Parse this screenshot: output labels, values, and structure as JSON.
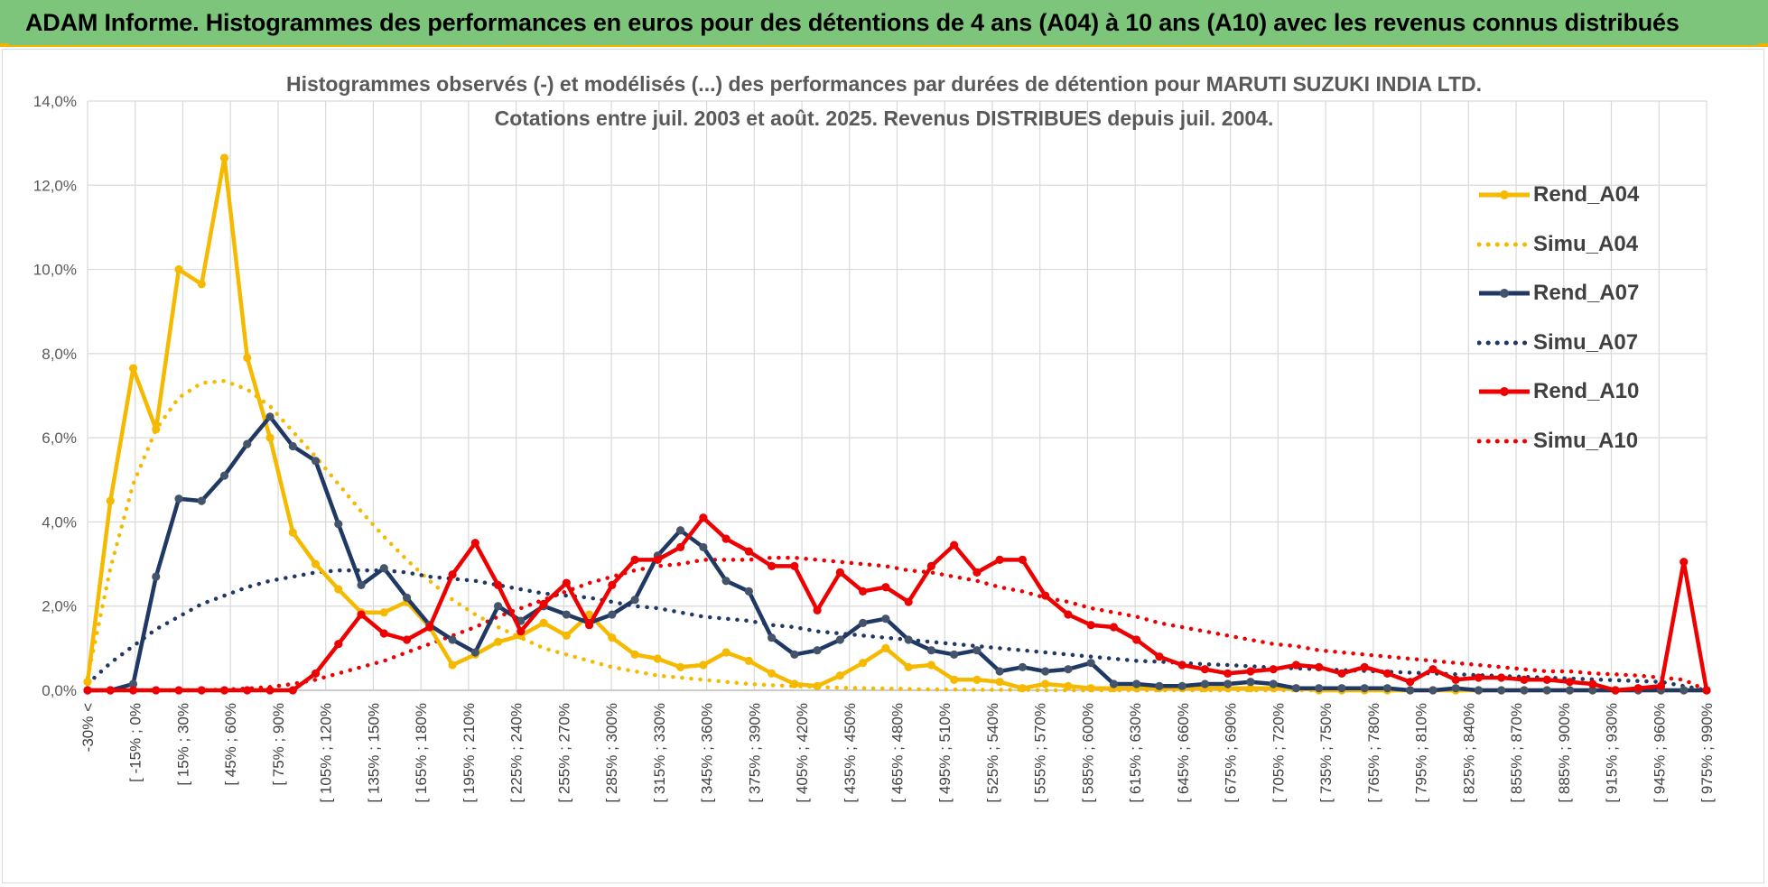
{
  "banner": {
    "title": "ADAM Informe. Histogrammes des performances en euros pour des détentions de 4 ans (A04) à 10 ans (A10) avec les revenus connus distribués"
  },
  "colors": {
    "banner_bg": "#7DC57B",
    "accent": "#F0B400",
    "A04": "#F5BA00",
    "A07": "#1F3864",
    "A10": "#EE0000"
  },
  "chart_data": {
    "type": "line",
    "title": "Histogrammes observés (-) et modélisés (...) des performances par durées de détention pour MARUTI SUZUKI INDIA LTD.",
    "subtitle": "Cotations entre juil. 2003 et août. 2025. Revenus DISTRIBUES depuis juil. 2004.",
    "ylim": [
      0,
      14
    ],
    "y_unit": "%",
    "yticks": [
      "0,0%",
      "2,0%",
      "4,0%",
      "6,0%",
      "8,0%",
      "10,0%",
      "12,0%",
      "14,0%"
    ],
    "grid": true,
    "legend_position": "top-right",
    "x_tick_labels": [
      "-30% <",
      "[ -15% ; 0%",
      "[ 15% ; 30%",
      "[ 45% ; 60%",
      "[ 75% ; 90%",
      "[ 105% ; 120%",
      "[ 135% ; 150%",
      "[ 165% ; 180%",
      "[ 195% ; 210%",
      "[ 225% ; 240%",
      "[ 255% ; 270%",
      "[ 285% ; 300%",
      "[ 315% ; 330%",
      "[ 345% ; 360%",
      "[ 375% ; 390%",
      "[ 405% ; 420%",
      "[ 435% ; 450%",
      "[ 465% ; 480%",
      "[ 495% ; 510%",
      "[ 525% ; 540%",
      "[ 555% ; 570%",
      "[ 585% ; 600%",
      "[ 615% ; 630%",
      "[ 645% ; 660%",
      "[ 675% ; 690%",
      "[ 705% ; 720%",
      "[ 735% ; 750%",
      "[ 765% ; 780%",
      "[ 795% ; 810%",
      "[ 825% ; 840%",
      "[ 855% ; 870%",
      "[ 885% ; 900%",
      "[ 915% ; 930%",
      "[ 945% ; 960%",
      "[ 975% ; 990%"
    ],
    "series": [
      {
        "name": "Rend_A04",
        "style": "solid-markers",
        "color": "#F5BA00",
        "values": [
          0.2,
          4.5,
          7.65,
          6.2,
          10.0,
          9.65,
          12.65,
          7.9,
          6.0,
          3.75,
          3.0,
          2.4,
          1.85,
          1.85,
          2.1,
          1.5,
          0.6,
          0.85,
          1.15,
          1.3,
          1.6,
          1.3,
          1.8,
          1.25,
          0.85,
          0.75,
          0.55,
          0.6,
          0.9,
          0.7,
          0.4,
          0.15,
          0.1,
          0.35,
          0.65,
          1.0,
          0.55,
          0.6,
          0.25,
          0.25,
          0.2,
          0.05,
          0.15,
          0.1,
          0.05,
          0.05,
          0.05,
          0.05,
          0.05,
          0.05,
          0.05,
          0.05,
          0.05,
          0.05,
          0.0,
          0.0,
          0.0,
          0.0,
          0.0,
          0.0,
          0.0,
          0.0,
          0.0,
          0.0,
          0.0,
          0.0,
          0.0,
          0.0,
          0.0,
          0.0,
          0.0,
          0.0
        ]
      },
      {
        "name": "Simu_A04",
        "style": "dotted",
        "color": "#F5BA00",
        "values": [
          0.3,
          2.9,
          4.9,
          6.2,
          6.95,
          7.3,
          7.35,
          7.15,
          6.75,
          6.15,
          5.55,
          4.9,
          4.25,
          3.65,
          3.1,
          2.6,
          2.15,
          1.8,
          1.5,
          1.25,
          1.0,
          0.85,
          0.7,
          0.55,
          0.45,
          0.35,
          0.3,
          0.25,
          0.2,
          0.15,
          0.12,
          0.1,
          0.08,
          0.06,
          0.05,
          0.04,
          0.03,
          0.02,
          0.02,
          0.01,
          0.01,
          0.01,
          0.0,
          0.0,
          0.0,
          0.0,
          0.0,
          0.0,
          0.0,
          0.0,
          0.0,
          0.0,
          0.0,
          0.0,
          0.0,
          0.0,
          0.0,
          0.0,
          0.0,
          0.0,
          0.0,
          0.0,
          0.0,
          0.0,
          0.0,
          0.0,
          0.0,
          0.0,
          0.0,
          0.0,
          0.0,
          0.0
        ]
      },
      {
        "name": "Rend_A07",
        "style": "solid-markers",
        "color": "#1F3864",
        "values": [
          0.0,
          0.0,
          0.15,
          2.7,
          4.55,
          4.5,
          5.1,
          5.85,
          6.5,
          5.8,
          5.45,
          3.95,
          2.5,
          2.9,
          2.2,
          1.55,
          1.2,
          0.9,
          2.0,
          1.65,
          2.0,
          1.8,
          1.6,
          1.8,
          2.15,
          3.2,
          3.8,
          3.4,
          2.6,
          2.35,
          1.25,
          0.85,
          0.95,
          1.2,
          1.6,
          1.7,
          1.2,
          0.95,
          0.85,
          0.95,
          0.45,
          0.55,
          0.45,
          0.5,
          0.65,
          0.15,
          0.15,
          0.1,
          0.1,
          0.15,
          0.15,
          0.2,
          0.15,
          0.05,
          0.05,
          0.05,
          0.05,
          0.05,
          0.0,
          0.0,
          0.05,
          0.0,
          0.0,
          0.0,
          0.0,
          0.0,
          0.0,
          0.0,
          0.0,
          0.0,
          0.0,
          0.0
        ]
      },
      {
        "name": "Simu_A07",
        "style": "dotted",
        "color": "#1F3864",
        "values": [
          0.15,
          0.65,
          1.05,
          1.45,
          1.75,
          2.05,
          2.25,
          2.45,
          2.6,
          2.7,
          2.8,
          2.85,
          2.85,
          2.85,
          2.8,
          2.7,
          2.65,
          2.6,
          2.5,
          2.4,
          2.3,
          2.25,
          2.2,
          2.1,
          2.0,
          1.95,
          1.85,
          1.75,
          1.7,
          1.65,
          1.55,
          1.5,
          1.4,
          1.35,
          1.3,
          1.25,
          1.2,
          1.15,
          1.1,
          1.05,
          1.0,
          0.95,
          0.9,
          0.85,
          0.8,
          0.75,
          0.7,
          0.68,
          0.65,
          0.62,
          0.6,
          0.57,
          0.54,
          0.52,
          0.5,
          0.48,
          0.46,
          0.44,
          0.42,
          0.4,
          0.38,
          0.36,
          0.34,
          0.32,
          0.3,
          0.28,
          0.26,
          0.24,
          0.22,
          0.2,
          0.1,
          0.0
        ]
      },
      {
        "name": "Rend_A10",
        "style": "solid-markers",
        "color": "#EE0000",
        "values": [
          0.0,
          0.0,
          0.0,
          0.0,
          0.0,
          0.0,
          0.0,
          0.0,
          0.0,
          0.0,
          0.4,
          1.1,
          1.8,
          1.35,
          1.2,
          1.5,
          2.75,
          3.5,
          2.5,
          1.4,
          2.05,
          2.55,
          1.55,
          2.5,
          3.1,
          3.1,
          3.4,
          4.1,
          3.6,
          3.3,
          2.95,
          2.95,
          1.9,
          2.8,
          2.35,
          2.45,
          2.1,
          2.95,
          3.45,
          2.8,
          3.1,
          3.1,
          2.25,
          1.8,
          1.55,
          1.5,
          1.2,
          0.8,
          0.6,
          0.5,
          0.4,
          0.45,
          0.5,
          0.6,
          0.55,
          0.4,
          0.55,
          0.4,
          0.2,
          0.5,
          0.25,
          0.3,
          0.3,
          0.25,
          0.25,
          0.2,
          0.15,
          0.0,
          0.05,
          0.1,
          3.05,
          0.0
        ]
      },
      {
        "name": "Simu_A10",
        "style": "dotted",
        "color": "#EE0000",
        "values": [
          0.0,
          0.0,
          0.0,
          0.0,
          0.0,
          0.0,
          0.02,
          0.04,
          0.08,
          0.15,
          0.25,
          0.4,
          0.55,
          0.7,
          0.9,
          1.1,
          1.3,
          1.5,
          1.75,
          1.95,
          2.15,
          2.35,
          2.55,
          2.7,
          2.85,
          2.95,
          3.0,
          3.1,
          3.1,
          3.1,
          3.15,
          3.15,
          3.1,
          3.05,
          3.0,
          2.95,
          2.85,
          2.8,
          2.7,
          2.6,
          2.45,
          2.35,
          2.2,
          2.1,
          1.95,
          1.85,
          1.75,
          1.6,
          1.5,
          1.4,
          1.3,
          1.2,
          1.1,
          1.05,
          0.95,
          0.9,
          0.85,
          0.8,
          0.75,
          0.7,
          0.65,
          0.6,
          0.55,
          0.5,
          0.45,
          0.45,
          0.4,
          0.38,
          0.35,
          0.3,
          0.25,
          0.0
        ]
      }
    ]
  }
}
